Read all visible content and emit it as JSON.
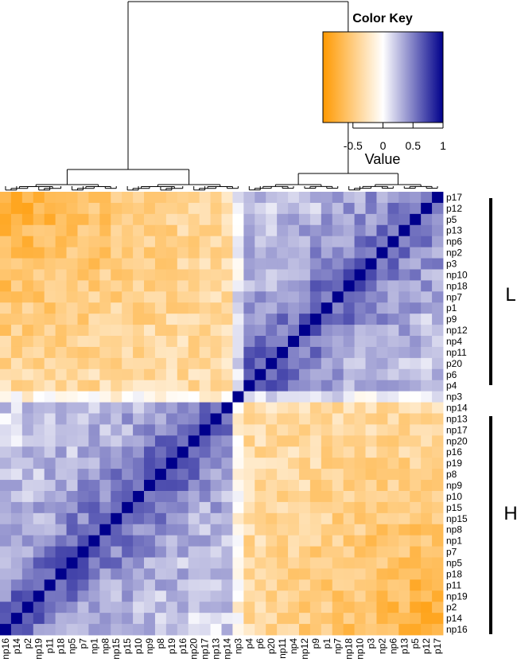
{
  "chart_data": {
    "type": "heatmap",
    "row_labels": [
      "p17",
      "p12",
      "p5",
      "p13",
      "np6",
      "np2",
      "p3",
      "np10",
      "np18",
      "np7",
      "p1",
      "p9",
      "np12",
      "np4",
      "np11",
      "p20",
      "p6",
      "p4",
      "np3",
      "np14",
      "np13",
      "np17",
      "np20",
      "p16",
      "p19",
      "p8",
      "np9",
      "p10",
      "p15",
      "np15",
      "np8",
      "np1",
      "p7",
      "np5",
      "p18",
      "p11",
      "np19",
      "p2",
      "p14",
      "np16"
    ],
    "column_labels": [
      "np16",
      "p14",
      "p2",
      "np19",
      "p11",
      "p18",
      "np5",
      "p7",
      "np1",
      "np8",
      "np15",
      "p15",
      "p10",
      "np9",
      "p8",
      "p19",
      "p16",
      "np20",
      "np17",
      "np13",
      "np14",
      "np3",
      "p4",
      "p6",
      "p20",
      "np11",
      "np4",
      "np12",
      "p9",
      "p1",
      "np7",
      "np18",
      "np10",
      "p3",
      "np2",
      "np6",
      "p13",
      "p5",
      "p12",
      "p17"
    ],
    "values_note_source": "",
    "clusters": {
      "L": [
        "p17",
        "p12",
        "p5",
        "p13",
        "np6",
        "np2",
        "p3",
        "np10",
        "np18",
        "np7",
        "p1",
        "p9",
        "np12",
        "np4",
        "np11",
        "p20",
        "p6",
        "p4"
      ],
      "H": [
        "np13",
        "np17",
        "np20",
        "p16",
        "p19",
        "p8",
        "np9",
        "p10",
        "p15",
        "np15",
        "np8",
        "np1",
        "p7",
        "np5",
        "p18",
        "p11",
        "np19",
        "p2",
        "p14",
        "np16"
      ]
    },
    "color_scale": {
      "min": -1,
      "mid": 0,
      "max": 1,
      "low_color": "#ff9900",
      "mid_color": "#ffffff",
      "high_color": "#00008b"
    },
    "legend": {
      "title": "Color Key",
      "axis_label": "Value",
      "ticks": [
        "-0.5",
        "0",
        "0.5",
        "1"
      ],
      "tick_values": [
        -0.5,
        0,
        0.5,
        1
      ],
      "range": [
        -1,
        1
      ]
    },
    "group_labels": [
      "L",
      "H"
    ],
    "dendrogram": "column dendrogram shown above the heatmap, splitting into two main clusters"
  }
}
